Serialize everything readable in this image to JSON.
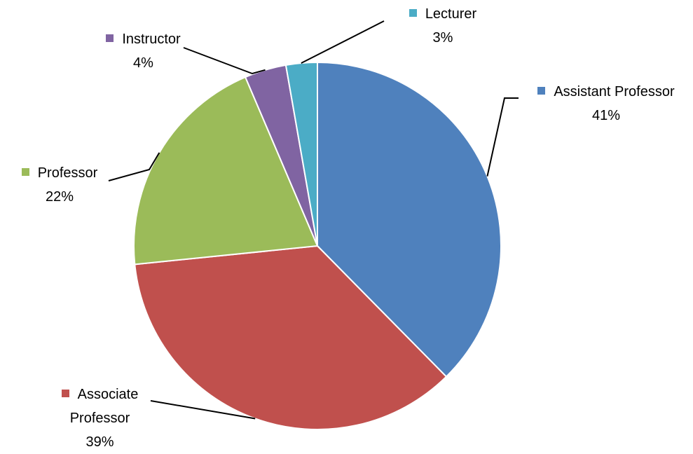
{
  "chart_data": {
    "type": "pie",
    "categories": [
      "Assistant Professor",
      "Associate Professor",
      "Professor",
      "Instructor",
      "Lecturer"
    ],
    "values": [
      41,
      39,
      22,
      4,
      3
    ],
    "value_labels": [
      "41%",
      "39%",
      "22%",
      "4%",
      "3%"
    ],
    "colors": [
      "#4f81bd",
      "#c0504d",
      "#9bbb59",
      "#8064a2",
      "#4bacc6"
    ]
  }
}
